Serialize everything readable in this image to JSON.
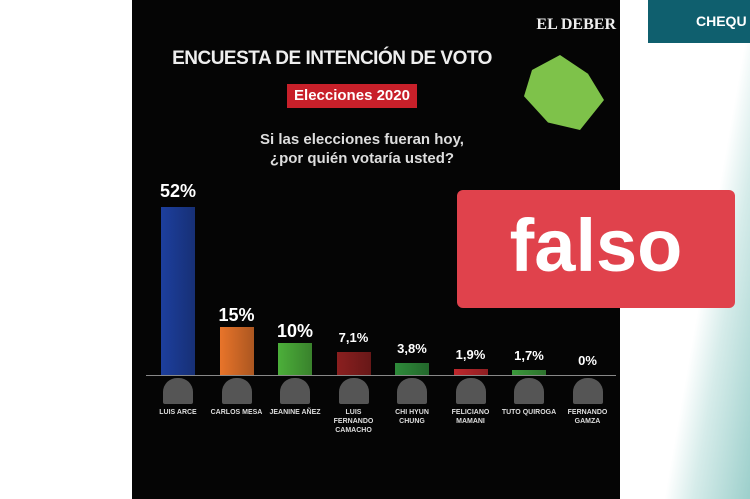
{
  "chart_data": {
    "type": "bar",
    "source": "EL DEBER",
    "title": "ENCUESTA DE INTENCIÓN DE VOTO",
    "subtitle": "Elecciones 2020",
    "question": "Si las elecciones fueran hoy, ¿por quién votaría usted?",
    "categories": [
      "LUIS ARCE",
      "CARLOS MESA",
      "JEANINE AÑEZ",
      "LUIS FERNANDO CAMACHO",
      "CHI HYUN CHUNG",
      "FELICIANO MAMANI",
      "TUTO QUIROGA",
      "FERNANDO GAMZA"
    ],
    "values": [
      52,
      15,
      10,
      7.1,
      3.8,
      1.9,
      1.7,
      0
    ],
    "value_labels": [
      "52%",
      "15%",
      "10%",
      "7,1%",
      "3,8%",
      "1,9%",
      "1,7%",
      "0%"
    ],
    "colors": [
      "#1d3f9e",
      "#e8742a",
      "#4caf3a",
      "#8b1f1f",
      "#2e8b3a",
      "#c0282d",
      "#3c9a3c",
      "#c0282d"
    ]
  },
  "overlay": {
    "stamp": "falso",
    "brand": "CHEQU"
  }
}
